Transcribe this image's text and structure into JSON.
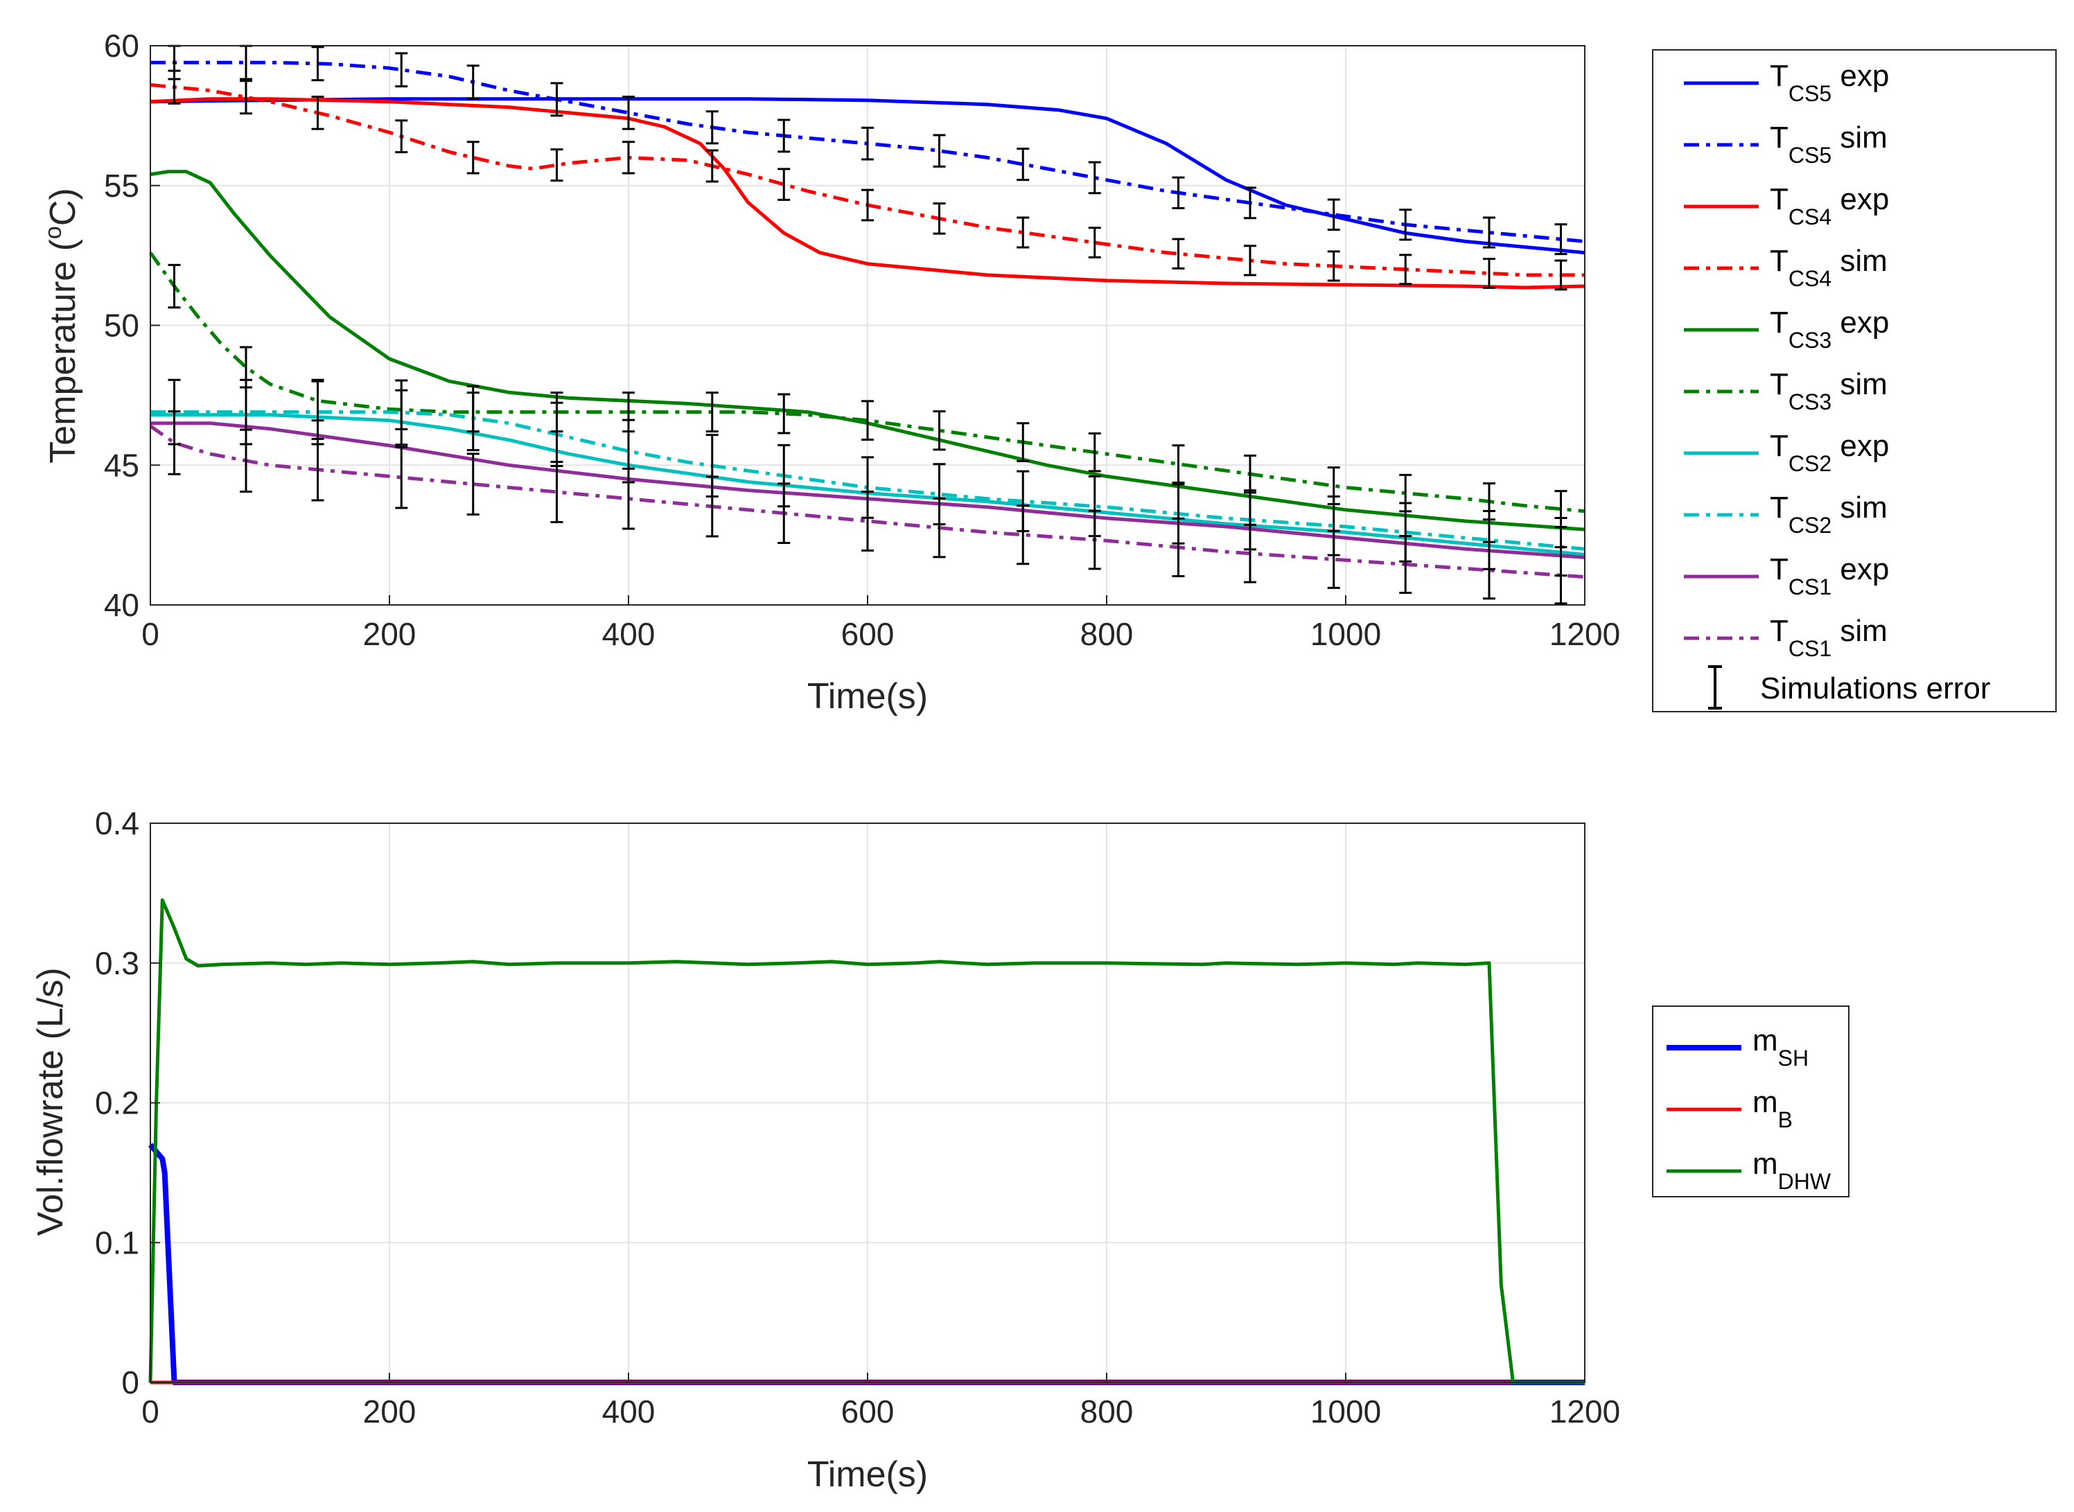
{
  "chart_data": [
    {
      "type": "line",
      "xlabel": "Time(s)",
      "ylabel_main": "Temperature (",
      "ylabel_sup": "o",
      "ylabel_end": "C)",
      "xlim": [
        0,
        1200
      ],
      "ylim": [
        40,
        60
      ],
      "xticks": [
        0,
        200,
        400,
        600,
        800,
        1000,
        1200
      ],
      "yticks": [
        40,
        45,
        50,
        55,
        60
      ],
      "grid": true,
      "legend_position": "outside-right",
      "series": [
        {
          "name_main": "T",
          "name_sub": "CS5",
          "name_tail": " exp",
          "color": "#0000FF",
          "style": "solid",
          "x": [
            0,
            100,
            200,
            300,
            400,
            500,
            600,
            700,
            760,
            800,
            850,
            900,
            950,
            1000,
            1050,
            1100,
            1150,
            1200
          ],
          "y": [
            58.0,
            58.05,
            58.1,
            58.1,
            58.1,
            58.1,
            58.05,
            57.9,
            57.7,
            57.4,
            56.5,
            55.2,
            54.3,
            53.8,
            53.3,
            53.0,
            52.8,
            52.6
          ]
        },
        {
          "name_main": "T",
          "name_sub": "CS5",
          "name_tail": " sim",
          "color": "#0000FF",
          "style": "dashdot",
          "x": [
            0,
            50,
            100,
            150,
            200,
            250,
            300,
            350,
            400,
            450,
            500,
            550,
            600,
            650,
            700,
            750,
            800,
            850,
            900,
            950,
            1000,
            1050,
            1100,
            1150,
            1200
          ],
          "y": [
            59.4,
            59.4,
            59.4,
            59.35,
            59.2,
            58.9,
            58.4,
            58.0,
            57.6,
            57.2,
            56.9,
            56.7,
            56.5,
            56.3,
            56.0,
            55.6,
            55.2,
            54.8,
            54.5,
            54.2,
            53.9,
            53.6,
            53.4,
            53.2,
            53.0
          ]
        },
        {
          "name_main": "T",
          "name_sub": "CS4",
          "name_tail": " exp",
          "color": "#FF0000",
          "style": "solid",
          "x": [
            0,
            50,
            100,
            200,
            300,
            350,
            400,
            430,
            460,
            480,
            500,
            530,
            560,
            600,
            650,
            700,
            800,
            900,
            1000,
            1100,
            1150,
            1200
          ],
          "y": [
            58.0,
            58.1,
            58.1,
            58.0,
            57.8,
            57.6,
            57.4,
            57.1,
            56.5,
            55.6,
            54.4,
            53.3,
            52.6,
            52.2,
            52.0,
            51.8,
            51.6,
            51.5,
            51.45,
            51.4,
            51.35,
            51.4
          ]
        },
        {
          "name_main": "T",
          "name_sub": "CS4",
          "name_tail": " sim",
          "color": "#FF0000",
          "style": "dashdot",
          "x": [
            0,
            50,
            100,
            150,
            200,
            250,
            300,
            320,
            350,
            400,
            450,
            500,
            550,
            600,
            650,
            700,
            750,
            800,
            850,
            900,
            950,
            1000,
            1050,
            1100,
            1150,
            1200
          ],
          "y": [
            58.6,
            58.4,
            58.0,
            57.5,
            56.9,
            56.2,
            55.7,
            55.6,
            55.8,
            56.0,
            55.9,
            55.4,
            54.8,
            54.3,
            53.9,
            53.5,
            53.2,
            52.9,
            52.6,
            52.4,
            52.2,
            52.1,
            52.0,
            51.9,
            51.8,
            51.8
          ]
        },
        {
          "name_main": "T",
          "name_sub": "CS3",
          "name_tail": " exp",
          "color": "#008000",
          "style": "solid",
          "x": [
            0,
            15,
            30,
            50,
            70,
            100,
            150,
            200,
            250,
            300,
            350,
            400,
            450,
            500,
            550,
            600,
            650,
            700,
            750,
            800,
            850,
            900,
            950,
            1000,
            1050,
            1100,
            1150,
            1200
          ],
          "y": [
            55.4,
            55.5,
            55.5,
            55.1,
            54.0,
            52.5,
            50.3,
            48.8,
            48.0,
            47.6,
            47.4,
            47.3,
            47.2,
            47.05,
            46.9,
            46.5,
            46.0,
            45.5,
            45.0,
            44.6,
            44.3,
            44.0,
            43.7,
            43.4,
            43.2,
            43.0,
            42.85,
            42.7
          ]
        },
        {
          "name_main": "T",
          "name_sub": "CS3",
          "name_tail": " sim",
          "color": "#008000",
          "style": "dashdot",
          "x": [
            0,
            20,
            40,
            60,
            80,
            100,
            140,
            200,
            250,
            300,
            350,
            400,
            450,
            500,
            550,
            600,
            650,
            700,
            750,
            800,
            850,
            900,
            950,
            1000,
            1050,
            1100,
            1150,
            1200
          ],
          "y": [
            52.6,
            51.4,
            50.3,
            49.3,
            48.5,
            47.9,
            47.3,
            47.0,
            46.9,
            46.9,
            46.9,
            46.9,
            46.9,
            46.9,
            46.8,
            46.6,
            46.3,
            46.0,
            45.7,
            45.4,
            45.1,
            44.8,
            44.5,
            44.2,
            44.0,
            43.8,
            43.55,
            43.35
          ]
        },
        {
          "name_main": "T",
          "name_sub": "CS2",
          "name_tail": " exp",
          "color": "#00BFBF",
          "style": "solid",
          "x": [
            0,
            100,
            200,
            250,
            300,
            350,
            400,
            450,
            500,
            550,
            600,
            700,
            800,
            900,
            1000,
            1100,
            1200
          ],
          "y": [
            46.8,
            46.8,
            46.6,
            46.3,
            45.9,
            45.4,
            45.0,
            44.7,
            44.4,
            44.2,
            44.0,
            43.7,
            43.3,
            42.9,
            42.6,
            42.2,
            41.8
          ]
        },
        {
          "name_main": "T",
          "name_sub": "CS2",
          "name_tail": " sim",
          "color": "#00BFBF",
          "style": "dashdot",
          "x": [
            0,
            100,
            200,
            250,
            300,
            350,
            400,
            450,
            500,
            550,
            600,
            700,
            800,
            900,
            1000,
            1100,
            1200
          ],
          "y": [
            46.9,
            46.9,
            46.9,
            46.8,
            46.5,
            46.0,
            45.5,
            45.1,
            44.8,
            44.5,
            44.2,
            43.8,
            43.5,
            43.1,
            42.8,
            42.4,
            42.0
          ]
        },
        {
          "name_main": "T",
          "name_sub": "CS1",
          "name_tail": " exp",
          "color": "#8E2C9A",
          "style": "solid",
          "x": [
            0,
            50,
            100,
            200,
            300,
            400,
            500,
            600,
            700,
            800,
            900,
            1000,
            1100,
            1200
          ],
          "y": [
            46.5,
            46.5,
            46.3,
            45.7,
            45.0,
            44.5,
            44.1,
            43.8,
            43.5,
            43.1,
            42.8,
            42.4,
            42.0,
            41.7
          ]
        },
        {
          "name_main": "T",
          "name_sub": "CS1",
          "name_tail": " sim",
          "color": "#8E2C9A",
          "style": "dashdot",
          "x": [
            0,
            20,
            50,
            100,
            200,
            300,
            400,
            500,
            600,
            700,
            800,
            900,
            1000,
            1100,
            1200
          ],
          "y": [
            46.4,
            45.8,
            45.4,
            45.0,
            44.6,
            44.2,
            43.8,
            43.4,
            43.0,
            42.6,
            42.3,
            41.9,
            41.6,
            41.3,
            41.0
          ]
        }
      ],
      "error_bars": {
        "label": "Simulations error",
        "x": [
          20,
          80,
          140,
          210,
          270,
          340,
          400,
          470,
          530,
          600,
          660,
          730,
          790,
          860,
          920,
          990,
          1050,
          1120,
          1180
        ],
        "series_index": [
          1,
          3,
          5,
          7,
          9
        ],
        "half_width_rel": [
          0.01,
          0.01,
          0.0148,
          0.0245,
          0.0245
        ]
      }
    },
    {
      "type": "line",
      "xlabel": "Time(s)",
      "ylabel": "Vol.flowrate (L/s)",
      "xlim": [
        0,
        1200
      ],
      "ylim": [
        0,
        0.4
      ],
      "xticks": [
        0,
        200,
        400,
        600,
        800,
        1000,
        1200
      ],
      "yticks": [
        "0",
        "0.1",
        "0.2",
        "0.3",
        "0.4"
      ],
      "ytick_values": [
        0,
        0.1,
        0.2,
        0.3,
        0.4
      ],
      "grid": true,
      "legend_position": "outside-right",
      "series": [
        {
          "name_main": "m",
          "name_sub": "SH",
          "color": "#0000FF",
          "style": "solid",
          "width": "thick",
          "x": [
            0,
            5,
            10,
            12,
            20,
            1200
          ],
          "y": [
            0.17,
            0.165,
            0.16,
            0.15,
            0.0,
            0.0
          ]
        },
        {
          "name_main": "m",
          "name_sub": "B",
          "color": "#FF0000",
          "style": "solid",
          "width": "normal",
          "x": [
            0,
            1200
          ],
          "y": [
            0.0,
            0.0
          ]
        },
        {
          "name_main": "m",
          "name_sub": "DHW",
          "color": "#008000",
          "style": "solid",
          "width": "normal",
          "x": [
            0,
            5,
            10,
            20,
            30,
            40,
            60,
            100,
            130,
            160,
            200,
            240,
            270,
            300,
            340,
            400,
            440,
            500,
            540,
            570,
            600,
            640,
            660,
            700,
            740,
            800,
            880,
            900,
            960,
            1000,
            1040,
            1060,
            1100,
            1120,
            1130,
            1140,
            1200
          ],
          "y": [
            0.0,
            0.2,
            0.345,
            0.325,
            0.303,
            0.298,
            0.299,
            0.3,
            0.299,
            0.3,
            0.299,
            0.3,
            0.301,
            0.299,
            0.3,
            0.3,
            0.301,
            0.299,
            0.3,
            0.301,
            0.299,
            0.3,
            0.301,
            0.299,
            0.3,
            0.3,
            0.299,
            0.3,
            0.299,
            0.3,
            0.299,
            0.3,
            0.299,
            0.3,
            0.07,
            0.0,
            0.0
          ]
        }
      ]
    }
  ],
  "legend_extra": {
    "error_label": "Simulations error"
  }
}
